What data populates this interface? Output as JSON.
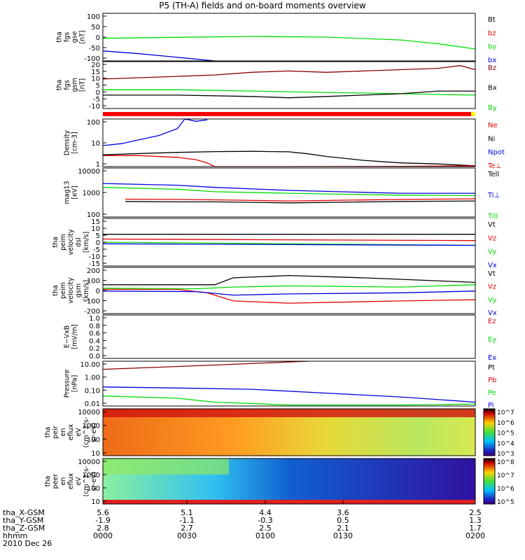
{
  "title": "P5 (TH-A) fields and on-board moments overview",
  "colors": {
    "black": "#000000",
    "red": "#e00000",
    "green": "#00dd00",
    "blue": "#0000dd",
    "darkred": "#8b0000"
  },
  "chart_data": [
    {
      "type": "line",
      "name": "fgs-gse",
      "ylabel": [
        "tha",
        "fgs",
        "gse",
        "[nT]"
      ],
      "yticks": [
        "100",
        "50",
        "0",
        "-50",
        "-100"
      ],
      "ylim": [
        -100,
        100
      ],
      "legend": [
        {
          "label": "Bt",
          "color": "black"
        },
        {
          "label": "bz",
          "color": "red"
        },
        {
          "label": "by",
          "color": "green"
        },
        {
          "label": "bx",
          "color": "blue"
        }
      ],
      "series": [
        {
          "name": "by",
          "color": "green",
          "x": [
            0,
            0.2,
            0.4,
            0.6,
            0.8,
            0.9,
            1
          ],
          "values": [
            -5,
            -1,
            3,
            0,
            -12,
            -28,
            -50
          ]
        },
        {
          "name": "bx",
          "color": "blue",
          "x": [
            0,
            0.1,
            0.2,
            0.3
          ],
          "values": [
            -58,
            -70,
            -85,
            -100
          ]
        }
      ]
    },
    {
      "type": "line",
      "name": "fgs-gsm",
      "ylabel": [
        "tha",
        "fgs",
        "gsm",
        "[nT]"
      ],
      "yticks": [
        "20",
        "15",
        "10",
        "5",
        "0",
        "-5",
        "-10"
      ],
      "ylim": [
        -15,
        20
      ],
      "legend": [
        {
          "label": "Bz",
          "color": "darkred"
        },
        {
          "label": "Bx",
          "color": "black"
        },
        {
          "label": "By",
          "color": "green"
        }
      ],
      "series": [
        {
          "name": "Bz",
          "color": "darkred",
          "x": [
            0,
            0.1,
            0.2,
            0.3,
            0.4,
            0.5,
            0.6,
            0.7,
            0.8,
            0.9,
            0.96,
            1
          ],
          "values": [
            7,
            8,
            9,
            10,
            12,
            13,
            12,
            13,
            14,
            15,
            17,
            14
          ]
        },
        {
          "name": "By",
          "color": "green",
          "x": [
            0,
            0.2,
            0.4,
            0.6,
            0.8,
            1
          ],
          "values": [
            -1,
            -1,
            -2,
            -3,
            -4,
            -5
          ]
        },
        {
          "name": "Bx",
          "color": "black",
          "x": [
            0,
            0.2,
            0.4,
            0.5,
            0.6,
            0.8,
            0.9,
            1
          ],
          "values": [
            -5,
            -5,
            -6,
            -7,
            -6,
            -4,
            -2,
            -2
          ]
        }
      ]
    },
    {
      "type": "line",
      "name": "density",
      "ylabel": [
        "Density",
        "[cm-3]"
      ],
      "yticks": [
        "100",
        "10",
        "1"
      ],
      "ylim": [
        0.5,
        200
      ],
      "scale": "log",
      "legend": [
        {
          "label": "Ne",
          "color": "red"
        },
        {
          "label": "Ni",
          "color": "black"
        },
        {
          "label": "Npot",
          "color": "blue"
        },
        {
          "label": "Te⊥",
          "color": "red"
        }
      ],
      "series": [
        {
          "name": "Npot",
          "color": "blue",
          "x": [
            0,
            0.05,
            0.1,
            0.15,
            0.2,
            0.22,
            0.25,
            0.28
          ],
          "values": [
            7,
            9,
            15,
            25,
            60,
            200,
            150,
            180
          ]
        },
        {
          "name": "Ni",
          "color": "black",
          "x": [
            0,
            0.1,
            0.2,
            0.3,
            0.4,
            0.5,
            0.55,
            0.6,
            0.7,
            0.8,
            0.9,
            1
          ],
          "values": [
            2.2,
            2.6,
            3,
            3.3,
            3.4,
            3.2,
            2.5,
            1.8,
            1.1,
            0.8,
            0.7,
            0.55
          ]
        },
        {
          "name": "Ne",
          "color": "red",
          "x": [
            0,
            0.1,
            0.2,
            0.25,
            0.28,
            0.3,
            0.5,
            0.8,
            1
          ],
          "values": [
            2,
            2,
            1.6,
            1.2,
            0.8,
            0.5,
            0.5,
            0.52,
            0.55
          ]
        }
      ]
    },
    {
      "type": "line",
      "name": "temperature",
      "ylabel": [
        "mag13",
        "[eV]"
      ],
      "yticks": [
        "10000",
        "1000",
        "100"
      ],
      "ylim": [
        30,
        10000
      ],
      "scale": "log",
      "legend": [
        {
          "label": "Tell",
          "color": "black"
        },
        {
          "label": "Ti⊥",
          "color": "blue"
        },
        {
          "label": "Till",
          "color": "green"
        }
      ],
      "series": [
        {
          "name": "Ti⊥",
          "color": "blue",
          "x": [
            0,
            0.2,
            0.3,
            0.5,
            0.8,
            1
          ],
          "values": [
            1600,
            1300,
            1000,
            700,
            500,
            500
          ]
        },
        {
          "name": "Till",
          "color": "green",
          "x": [
            0,
            0.2,
            0.3,
            0.5,
            0.8,
            1
          ],
          "values": [
            1000,
            800,
            600,
            500,
            400,
            380
          ]
        },
        {
          "name": "Te⊥",
          "color": "red",
          "x": [
            0.06,
            0.2,
            0.3,
            0.5,
            0.8,
            1
          ],
          "values": [
            250,
            240,
            230,
            200,
            240,
            260
          ]
        },
        {
          "name": "Tell",
          "color": "black",
          "x": [
            0.06,
            0.2,
            0.3,
            0.5,
            0.8,
            1
          ],
          "values": [
            190,
            180,
            180,
            160,
            190,
            200
          ]
        }
      ]
    },
    {
      "type": "line",
      "name": "peim-dsl",
      "ylabel": [
        "tha",
        "peim",
        "velocity",
        "dsl",
        "[km/s]"
      ],
      "yticks": [
        "15",
        "10",
        "5",
        "0",
        "-5",
        "-10",
        "-15"
      ],
      "ylim": [
        -15,
        15
      ],
      "legend": [
        {
          "label": "Vt",
          "color": "black"
        },
        {
          "label": "Vz",
          "color": "red"
        },
        {
          "label": "Vy",
          "color": "green"
        },
        {
          "label": "Vx",
          "color": "blue"
        }
      ],
      "series": [
        {
          "name": "Vt",
          "color": "black",
          "x": [
            0,
            1
          ],
          "values": [
            5,
            5
          ]
        },
        {
          "name": "Vz",
          "color": "red",
          "x": [
            0,
            1
          ],
          "values": [
            2,
            1
          ]
        },
        {
          "name": "Vy",
          "color": "green",
          "x": [
            0,
            1
          ],
          "values": [
            0,
            -2
          ]
        },
        {
          "name": "Vx",
          "color": "blue",
          "x": [
            0,
            1
          ],
          "values": [
            -1,
            -2
          ]
        }
      ]
    },
    {
      "type": "line",
      "name": "peim-gsm",
      "ylabel": [
        "tha",
        "peim",
        "velocity",
        "gsm",
        "[km/s]"
      ],
      "yticks": [
        "200",
        "100",
        "0",
        "-100",
        "-200"
      ],
      "ylim": [
        -200,
        200
      ],
      "legend": [
        {
          "label": "Vt",
          "color": "black"
        },
        {
          "label": "Vz",
          "color": "red"
        },
        {
          "label": "Vy",
          "color": "green"
        },
        {
          "label": "Vx",
          "color": "blue"
        }
      ],
      "series": [
        {
          "name": "Vt",
          "color": "black",
          "x": [
            0,
            0.2,
            0.3,
            0.35,
            0.5,
            0.7,
            1
          ],
          "values": [
            50,
            50,
            50,
            110,
            130,
            110,
            70
          ]
        },
        {
          "name": "Vz",
          "color": "red",
          "x": [
            0,
            0.2,
            0.28,
            0.35,
            0.5,
            0.8,
            1
          ],
          "values": [
            10,
            10,
            -20,
            -90,
            -110,
            -90,
            -80
          ]
        },
        {
          "name": "Vy",
          "color": "green",
          "x": [
            0,
            0.25,
            0.35,
            0.5,
            0.8,
            1
          ],
          "values": [
            20,
            15,
            30,
            40,
            30,
            50
          ]
        },
        {
          "name": "Vx",
          "color": "blue",
          "x": [
            0,
            0.25,
            0.35,
            0.5,
            0.8,
            1
          ],
          "values": [
            -5,
            -10,
            -40,
            -30,
            -20,
            -5
          ]
        }
      ]
    },
    {
      "type": "line",
      "name": "efield",
      "ylabel": [
        "E−VxB",
        "[mV/m]"
      ],
      "yticks": [
        "1.0",
        "0.8",
        "0.6",
        "0.4",
        "0.2",
        "0.0"
      ],
      "ylim": [
        0,
        1
      ],
      "legend": [
        {
          "label": "Ez",
          "color": "red"
        },
        {
          "label": "Ey",
          "color": "green"
        },
        {
          "label": "Ex",
          "color": "blue"
        }
      ],
      "series": []
    },
    {
      "type": "line",
      "name": "pressure",
      "ylabel": [
        "Pressure",
        "[nPa]"
      ],
      "yticks": [
        "10.00",
        "1.00",
        "0.10",
        "0.01"
      ],
      "ylim": [
        0.01,
        30
      ],
      "scale": "log",
      "legend": [
        {
          "label": "Pt",
          "color": "black"
        },
        {
          "label": "Pb",
          "color": "red"
        },
        {
          "label": "Pe",
          "color": "green"
        },
        {
          "label": "Pi",
          "color": "blue"
        }
      ],
      "series": [
        {
          "name": "Pt",
          "color": "darkred",
          "x": [
            0,
            0.3,
            0.55
          ],
          "values": [
            7,
            15,
            30
          ]
        },
        {
          "name": "Pi",
          "color": "blue",
          "x": [
            0,
            0.2,
            0.4,
            0.6,
            0.8,
            1
          ],
          "values": [
            0.3,
            0.25,
            0.2,
            0.1,
            0.05,
            0.02
          ]
        },
        {
          "name": "Pe",
          "color": "green",
          "x": [
            0,
            0.2,
            0.3,
            0.5,
            0.8,
            1
          ],
          "values": [
            0.06,
            0.04,
            0.02,
            0.012,
            0.012,
            0.014
          ]
        }
      ]
    },
    {
      "type": "heatmap",
      "name": "peir-eflux",
      "ylabel": [
        "tha",
        "peir",
        "en",
        "eflux",
        "eV",
        "(cm^2-s-",
        "sr-eV)"
      ],
      "yticks": [
        "10000",
        "1000",
        "100",
        "10"
      ],
      "colorbar": [
        "10^7",
        "10^6",
        "10^5",
        "10^4",
        "10^3"
      ]
    },
    {
      "type": "heatmap",
      "name": "peer-eflux",
      "ylabel": [
        "tha",
        "peer",
        "en",
        "eflux",
        "eV",
        "(cm^2-s-",
        "sr-eV)"
      ],
      "yticks": [
        "10000",
        "1000",
        "100",
        "10"
      ],
      "colorbar": [
        "10^8",
        "10^7",
        "10^6",
        "10^5"
      ]
    }
  ],
  "xaxis": {
    "rows": [
      {
        "label": "tha_X-GSM",
        "ticks": [
          "5.6",
          "5.1",
          "4.4",
          "3.6",
          "2.5"
        ]
      },
      {
        "label": "tha_Y-GSM",
        "ticks": [
          "-1.9",
          "-1.1",
          "-0.3",
          "0.5",
          "1.3"
        ]
      },
      {
        "label": "tha_Z-GSM",
        "ticks": [
          "2.8",
          "2.7",
          "2.5",
          "2.1",
          "1.7"
        ]
      },
      {
        "label": "hhmm",
        "ticks": [
          "0000",
          "0030",
          "0100",
          "0130",
          "0200"
        ]
      }
    ],
    "date": "2010 Dec 26"
  }
}
